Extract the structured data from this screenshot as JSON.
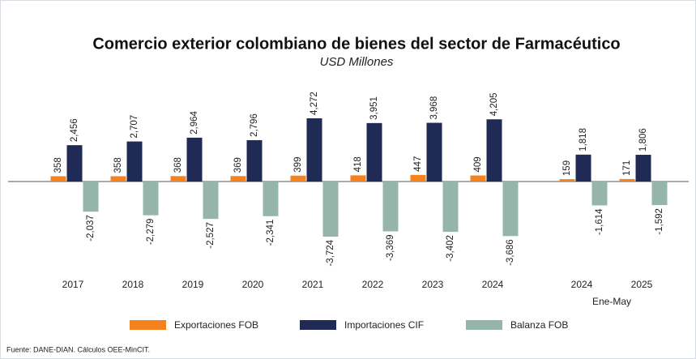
{
  "chart_data": {
    "type": "bar",
    "title": "Comercio exterior colombiano de bienes del sector de Farmacéutico",
    "subtitle": "USD Millones",
    "categories": [
      "2017",
      "2018",
      "2019",
      "2020",
      "2021",
      "2022",
      "2023",
      "2024",
      "2024",
      "2025"
    ],
    "annotations": [
      "Ene-May"
    ],
    "series": [
      {
        "name": "Exportaciones FOB",
        "color": "#f5821f",
        "values": [
          358,
          358,
          368,
          369,
          399,
          418,
          447,
          409,
          159,
          171
        ],
        "value_labels": [
          "358",
          "358",
          "368",
          "369",
          "399",
          "418",
          "447",
          "409",
          "159",
          "171"
        ]
      },
      {
        "name": "Importaciones CIF",
        "color": "#1f2a55",
        "values": [
          2456,
          2707,
          2964,
          2796,
          4272,
          3951,
          3968,
          4205,
          1818,
          1806
        ],
        "value_labels": [
          "2,456",
          "2,707",
          "2,964",
          "2,796",
          "4,272",
          "3,951",
          "3,968",
          "4,205",
          "1,818",
          "1,806"
        ]
      },
      {
        "name": "Balanza FOB",
        "color": "#95b5ab",
        "values": [
          -2037,
          -2279,
          -2527,
          -2341,
          -3724,
          -3369,
          -3402,
          -3686,
          -1614,
          -1592
        ],
        "value_labels": [
          "-2,037",
          "-2,279",
          "-2,527",
          "-2,341",
          "-3,724",
          "-3,369",
          "-3,402",
          "-3,686",
          "-1,614",
          "-1,592"
        ]
      }
    ],
    "source": "Fuente: DANE-DIAN. Cálculos OEE-MinCIT."
  }
}
